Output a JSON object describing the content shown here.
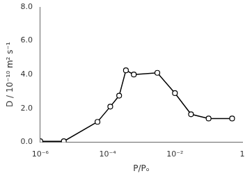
{
  "chart_data": {
    "type": "line",
    "x": [
      1e-06,
      5e-06,
      5e-05,
      0.00012,
      0.00022,
      0.00035,
      0.0006,
      0.003,
      0.01,
      0.03,
      0.1,
      0.5
    ],
    "values": [
      0.05,
      0.05,
      1.2,
      2.1,
      2.75,
      4.25,
      4.0,
      4.1,
      2.9,
      1.65,
      1.4,
      1.4
    ],
    "xlabel": "P/Pₒ",
    "ylabel": "D / 10⁻¹⁰ m² s⁻¹",
    "log": "x",
    "xlim": [
      1e-06,
      1.0
    ],
    "ylim": [
      0.0,
      8.0
    ],
    "xticks": [
      {
        "value": 1e-06,
        "label": "10⁻⁶"
      },
      {
        "value": 0.0001,
        "label": "10⁻⁴"
      },
      {
        "value": 0.01,
        "label": "10⁻²"
      },
      1
    ],
    "yticks": [
      {
        "value": 0.0,
        "label": "0.0"
      },
      {
        "value": 2.0,
        "label": "2.0"
      },
      {
        "value": 4.0,
        "label": "4.0"
      },
      {
        "value": 6.0,
        "label": "6.0"
      },
      {
        "value": 8.0,
        "label": "8.0"
      }
    ],
    "color": "#000000",
    "marker": "circle",
    "grid": false
  }
}
